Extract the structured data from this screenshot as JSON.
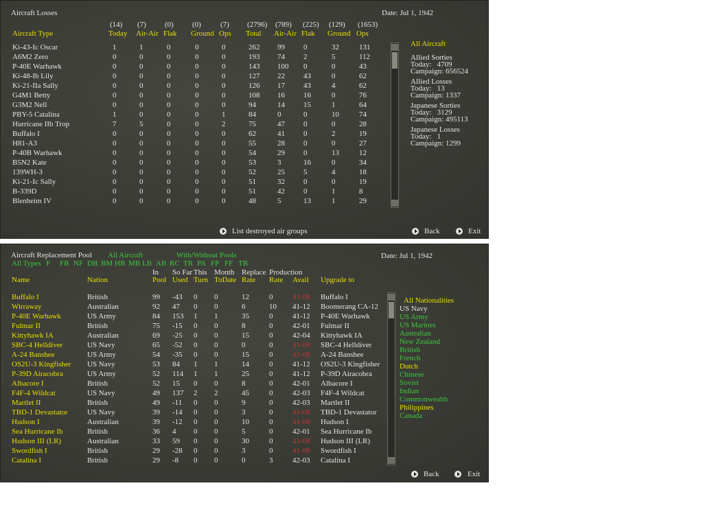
{
  "losses": {
    "title": "Aircraft Losses",
    "date": "Date: Jul 1, 1942",
    "totals": [
      "(14)",
      "(7)",
      "(0)",
      "(0)",
      "(7)",
      "(2796)",
      "(789)",
      "(225)",
      "(129)",
      "(1653)"
    ],
    "columns": [
      "Aircraft Type",
      "Today",
      "Air-Air",
      "Flak",
      "Ground",
      "Ops",
      "Total",
      "Air-Air",
      "Flak",
      "Ground",
      "Ops"
    ],
    "rows": [
      {
        "type": "Ki-43-Ic Oscar",
        "values": [
          1,
          1,
          0,
          0,
          0,
          262,
          99,
          0,
          32,
          131
        ]
      },
      {
        "type": "A6M2 Zero",
        "values": [
          0,
          0,
          0,
          0,
          0,
          193,
          74,
          2,
          5,
          112
        ]
      },
      {
        "type": "P-40E Warhawk",
        "values": [
          0,
          0,
          0,
          0,
          0,
          143,
          100,
          0,
          0,
          43
        ]
      },
      {
        "type": "Ki-48-Ib Lily",
        "values": [
          0,
          0,
          0,
          0,
          0,
          127,
          22,
          43,
          0,
          62
        ]
      },
      {
        "type": "Ki-21-IIa Sally",
        "values": [
          0,
          0,
          0,
          0,
          0,
          126,
          17,
          43,
          4,
          62
        ]
      },
      {
        "type": "G4M1 Betty",
        "values": [
          0,
          0,
          0,
          0,
          0,
          108,
          16,
          16,
          0,
          76
        ]
      },
      {
        "type": "G3M2 Nell",
        "values": [
          0,
          0,
          0,
          0,
          0,
          94,
          14,
          15,
          1,
          64
        ]
      },
      {
        "type": "PBY-5 Catalina",
        "values": [
          1,
          0,
          0,
          0,
          1,
          84,
          0,
          0,
          10,
          74
        ]
      },
      {
        "type": "Hurricane IIb Trop",
        "values": [
          7,
          5,
          0,
          0,
          2,
          75,
          47,
          0,
          0,
          28
        ]
      },
      {
        "type": "Buffalo I",
        "values": [
          0,
          0,
          0,
          0,
          0,
          62,
          41,
          0,
          2,
          19
        ]
      },
      {
        "type": "H81-A3",
        "values": [
          0,
          0,
          0,
          0,
          0,
          55,
          28,
          0,
          0,
          27
        ]
      },
      {
        "type": "P-40B Warhawk",
        "values": [
          0,
          0,
          0,
          0,
          0,
          54,
          29,
          0,
          13,
          12
        ]
      },
      {
        "type": "B5N2 Kate",
        "values": [
          0,
          0,
          0,
          0,
          0,
          53,
          3,
          16,
          0,
          34
        ]
      },
      {
        "type": "139WH-3",
        "values": [
          0,
          0,
          0,
          0,
          0,
          52,
          25,
          5,
          4,
          18
        ]
      },
      {
        "type": "Ki-21-Ic Sally",
        "values": [
          0,
          0,
          0,
          0,
          0,
          51,
          32,
          0,
          0,
          19
        ]
      },
      {
        "type": "B-339D",
        "values": [
          0,
          0,
          0,
          0,
          0,
          51,
          42,
          0,
          1,
          8
        ]
      },
      {
        "type": "Blenheim IV",
        "values": [
          0,
          0,
          0,
          0,
          0,
          48,
          5,
          13,
          1,
          29
        ]
      }
    ],
    "sidebar": {
      "filter": "All Aircraft",
      "groups": [
        {
          "heading": "Allied Sorties",
          "lines": [
            "Today:   4709",
            "Campaign: 656524"
          ]
        },
        {
          "heading": "Allied Losses",
          "lines": [
            "Today:   13",
            "Campaign: 1337"
          ]
        },
        {
          "heading": "Japanese Sorties",
          "lines": [
            "Today:   3129",
            "Campaign: 495113"
          ]
        },
        {
          "heading": "Japanese Losses",
          "lines": [
            "Today:   1",
            "Campaign: 1299"
          ]
        }
      ]
    },
    "footer": {
      "link": "List destroyed air groups",
      "back": "Back",
      "exit": "Exit"
    }
  },
  "pool": {
    "title": "Aircraft Replacement Pool",
    "filter": "All Aircraft",
    "pools": "With/Without Pools",
    "date": "Date: Jul 1, 1942",
    "types": [
      "All Types",
      "F",
      "FB",
      "NF",
      "DB",
      "BM",
      "HB",
      "MB",
      "LB",
      "AB",
      "RC",
      "TR",
      "PA",
      "FP",
      "FF",
      "TB"
    ],
    "headers": [
      [
        "Name"
      ],
      [
        "Nation"
      ],
      [
        "In",
        "Pool"
      ],
      [
        "So Far",
        "Used"
      ],
      [
        "This",
        "Turn"
      ],
      [
        "Month",
        "ToDate"
      ],
      [
        "Replace",
        "Rate"
      ],
      [
        "Production",
        "Rate"
      ],
      [
        "Avail"
      ],
      [
        "Upgrade to"
      ]
    ],
    "rows": [
      {
        "cells": [
          "Buffalo I",
          "British",
          99,
          -43,
          0,
          0,
          12,
          0,
          "41-08",
          "Buffalo I"
        ],
        "avail_color": "#c83232"
      },
      {
        "cells": [
          "Wirraway",
          "Australian",
          92,
          47,
          0,
          0,
          6,
          10,
          "41-12",
          "Boomerang CA-12"
        ]
      },
      {
        "cells": [
          "P-40E Warhawk",
          "US Army",
          84,
          153,
          1,
          1,
          35,
          0,
          "41-12",
          "P-40E Warhawk"
        ]
      },
      {
        "cells": [
          "Fulmar II",
          "British",
          75,
          -15,
          0,
          0,
          8,
          0,
          "42-01",
          "Fulmar II"
        ]
      },
      {
        "cells": [
          "Kittyhawk IA",
          "Australian",
          69,
          -25,
          0,
          0,
          15,
          0,
          "42-04",
          "Kittyhawk IA"
        ]
      },
      {
        "cells": [
          "SBC-4 Helldiver",
          "US Navy",
          65,
          -52,
          0,
          0,
          0,
          0,
          "41-08",
          "SBC-4 Helldiver"
        ],
        "avail_color": "#c83232"
      },
      {
        "cells": [
          "A-24 Banshee",
          "US Army",
          54,
          -35,
          0,
          0,
          15,
          0,
          "41-08",
          "A-24 Banshee"
        ],
        "avail_color": "#c83232"
      },
      {
        "cells": [
          "OS2U-3 Kingfisher",
          "US Navy",
          53,
          84,
          1,
          1,
          14,
          0,
          "41-12",
          "OS2U-3 Kingfisher"
        ]
      },
      {
        "cells": [
          "P-39D Airacobra",
          "US Army",
          52,
          114,
          1,
          1,
          25,
          0,
          "41-12",
          "P-39D Airacobra"
        ]
      },
      {
        "cells": [
          "Albacore I",
          "British",
          52,
          15,
          0,
          0,
          8,
          0,
          "42-01",
          "Albacore I"
        ]
      },
      {
        "cells": [
          "F4F-4 Wildcat",
          "US Navy",
          49,
          137,
          2,
          2,
          45,
          0,
          "42-03",
          "F4F-4 Wildcat"
        ]
      },
      {
        "cells": [
          "Martlet II",
          "British",
          49,
          -11,
          0,
          0,
          9,
          0,
          "42-03",
          "Martlet II"
        ]
      },
      {
        "cells": [
          "TBD-1 Devastator",
          "US Navy",
          39,
          -14,
          0,
          0,
          3,
          0,
          "41-08",
          "TBD-1 Devastator"
        ],
        "avail_color": "#c83232"
      },
      {
        "cells": [
          "Hudson I",
          "Australian",
          39,
          -12,
          0,
          0,
          10,
          0,
          "41-08",
          "Hudson I"
        ],
        "avail_color": "#c83232"
      },
      {
        "cells": [
          "Sea Hurricane Ib",
          "British",
          36,
          4,
          0,
          0,
          5,
          0,
          "42-01",
          "Sea Hurricane Ib"
        ]
      },
      {
        "cells": [
          "Hudson III (LR)",
          "Australian",
          33,
          59,
          0,
          0,
          30,
          0,
          "41-08",
          "Hudson III (LR)"
        ],
        "avail_color": "#c83232"
      },
      {
        "cells": [
          "Swordfish I",
          "British",
          29,
          -28,
          0,
          0,
          3,
          0,
          "41-08",
          "Swordfish I"
        ],
        "avail_color": "#c83232"
      },
      {
        "cells": [
          "Catalina I",
          "British",
          29,
          -8,
          0,
          0,
          0,
          3,
          "42-03",
          "Catalina I"
        ]
      }
    ],
    "nationalities": [
      {
        "label": "All Nationalities",
        "color": "#e8e000"
      },
      {
        "label": "US Navy",
        "color": "#e6e6e6"
      },
      {
        "label": "US Army",
        "color": "#3ec83e"
      },
      {
        "label": "US Marines",
        "color": "#3ec83e"
      },
      {
        "label": "Australian",
        "color": "#3ec83e"
      },
      {
        "label": "New Zealand",
        "color": "#3ec83e"
      },
      {
        "label": "British",
        "color": "#3ec83e"
      },
      {
        "label": "French",
        "color": "#3ec83e"
      },
      {
        "label": "Dutch",
        "color": "#e8e000"
      },
      {
        "label": "Chinese",
        "color": "#3ec83e"
      },
      {
        "label": "Soviet",
        "color": "#3ec83e"
      },
      {
        "label": "Indian",
        "color": "#3ec83e"
      },
      {
        "label": "Commonwealth",
        "color": "#3ec83e"
      },
      {
        "label": "Philippines",
        "color": "#e8e000"
      },
      {
        "label": "Canada",
        "color": "#3ec83e"
      }
    ],
    "footer": {
      "back": "Back",
      "exit": "Exit"
    }
  }
}
